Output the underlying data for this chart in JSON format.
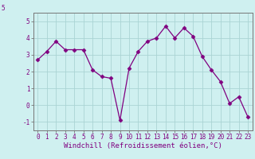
{
  "x": [
    0,
    1,
    2,
    3,
    4,
    5,
    6,
    7,
    8,
    9,
    10,
    11,
    12,
    13,
    14,
    15,
    16,
    17,
    18,
    19,
    20,
    21,
    22,
    23
  ],
  "y": [
    2.7,
    3.2,
    3.8,
    3.3,
    3.3,
    3.3,
    2.1,
    1.7,
    1.6,
    -0.9,
    2.2,
    3.2,
    3.8,
    4.0,
    4.7,
    4.0,
    4.6,
    4.1,
    2.9,
    2.1,
    1.4,
    0.1,
    0.5,
    -0.7
  ],
  "line_color": "#800080",
  "marker": "D",
  "marker_size": 2.5,
  "bg_color": "#cff0f0",
  "grid_color": "#aad4d4",
  "xlabel": "Windchill (Refroidissement éolien,°C)",
  "ylim": [
    -1.5,
    5.5
  ],
  "xlim": [
    -0.5,
    23.5
  ],
  "yticks": [
    -1,
    0,
    1,
    2,
    3,
    4,
    5
  ],
  "xticks": [
    0,
    1,
    2,
    3,
    4,
    5,
    6,
    7,
    8,
    9,
    10,
    11,
    12,
    13,
    14,
    15,
    16,
    17,
    18,
    19,
    20,
    21,
    22,
    23
  ],
  "top_label": "5",
  "label_fontsize": 6.5,
  "tick_fontsize": 5.5
}
